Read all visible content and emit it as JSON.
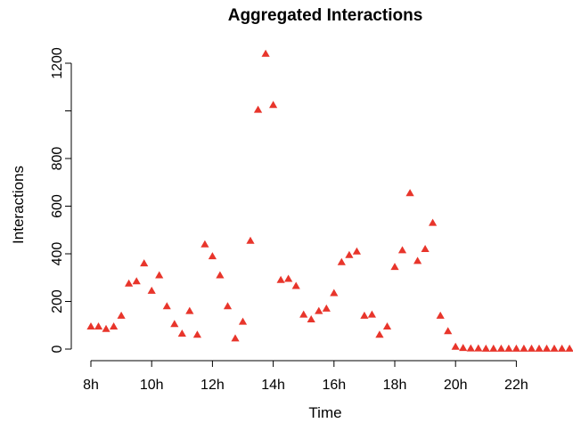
{
  "chart_data": {
    "type": "scatter",
    "title": "Aggregated Interactions",
    "xlabel": "Time",
    "ylabel": "Interactions",
    "marker": "filled-triangle",
    "color": "#E8352B",
    "grid": false,
    "x_unit": "hour of day",
    "xlim": [
      8,
      24
    ],
    "ylim": [
      0,
      1300
    ],
    "x_ticks": [
      8,
      10,
      12,
      14,
      16,
      18,
      20,
      22
    ],
    "x_tick_labels": [
      "8h",
      "10h",
      "12h",
      "14h",
      "16h",
      "18h",
      "20h",
      "22h"
    ],
    "y_ticks": [
      0,
      200,
      400,
      600,
      800,
      1000,
      1200
    ],
    "y_tick_labels": [
      "0",
      "200",
      "400",
      "600",
      "800",
      "",
      "1200"
    ],
    "series": [
      {
        "x": [
          8,
          8.25,
          8.5,
          8.75,
          9,
          9.25,
          9.5,
          9.75,
          10,
          10.25,
          10.5,
          10.75,
          11,
          11.25,
          11.5,
          11.75,
          12,
          12.25,
          12.5,
          12.75,
          13,
          13.25,
          13.5,
          13.75,
          14,
          14.25,
          14.5,
          14.75,
          15,
          15.25,
          15.5,
          15.75,
          16,
          16.25,
          16.5,
          16.75,
          17,
          17.25,
          17.5,
          17.75,
          18,
          18.25,
          18.5,
          18.75,
          19,
          19.25,
          19.5,
          19.75,
          20,
          20.25,
          20.5,
          20.75,
          21,
          21.25,
          21.5,
          21.75,
          22,
          22.25,
          22.5,
          22.75,
          23,
          23.25,
          23.5,
          23.75
        ],
        "values": [
          95,
          95,
          85,
          95,
          140,
          275,
          285,
          360,
          245,
          310,
          180,
          105,
          65,
          160,
          60,
          440,
          390,
          310,
          180,
          45,
          115,
          455,
          1005,
          1240,
          1025,
          290,
          295,
          265,
          145,
          125,
          160,
          170,
          235,
          365,
          395,
          410,
          140,
          145,
          60,
          95,
          345,
          415,
          655,
          370,
          420,
          530,
          140,
          75,
          10,
          5,
          3,
          3,
          2,
          2,
          2,
          2,
          2,
          2,
          2,
          2,
          2,
          2,
          2,
          2
        ]
      }
    ]
  }
}
